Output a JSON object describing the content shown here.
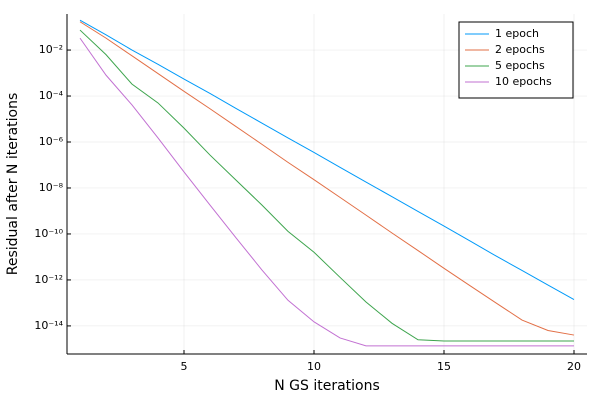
{
  "chart_data": {
    "type": "line",
    "xlabel": "N GS iterations",
    "ylabel": "Residual after N iterations",
    "x": [
      1,
      2,
      3,
      4,
      5,
      6,
      7,
      8,
      9,
      10,
      11,
      12,
      13,
      14,
      15,
      16,
      17,
      18,
      19,
      20
    ],
    "xlim": [
      0.5,
      20.5
    ],
    "xticks": [
      5,
      10,
      15,
      20
    ],
    "ylim": [
      6e-16,
      0.37
    ],
    "ylog": true,
    "grid": true,
    "legend": "top-right",
    "yticks": [
      {
        "value": 1e-14,
        "label": "10⁻¹⁴"
      },
      {
        "value": 1e-12,
        "label": "10⁻¹²"
      },
      {
        "value": 1e-10,
        "label": "10⁻¹⁰"
      },
      {
        "value": 1e-08,
        "label": "10⁻⁸"
      },
      {
        "value": 1e-06,
        "label": "10⁻⁶"
      },
      {
        "value": 0.0001,
        "label": "10⁻⁴"
      },
      {
        "value": 0.01,
        "label": "10⁻²"
      }
    ],
    "series": [
      {
        "name": "1 epoch",
        "color": "#009af9",
        "values": [
          0.2,
          0.046,
          0.01,
          0.0024,
          0.00055,
          0.00013,
          2.9e-05,
          6.6e-06,
          1.5e-06,
          3.5e-07,
          7.9e-08,
          1.8e-08,
          4.2e-09,
          9.5e-10,
          2.2e-10,
          5e-11,
          1.1e-11,
          2.6e-12,
          6e-13,
          1.4e-13
        ]
      },
      {
        "name": "2 epochs",
        "color": "#e26f46",
        "values": [
          0.17,
          0.033,
          0.0056,
          0.00095,
          0.00016,
          2.8e-05,
          4.7e-06,
          7.9e-07,
          1.3e-07,
          2.3e-08,
          3.9e-09,
          6.6e-10,
          1.1e-10,
          1.9e-11,
          3.2e-12,
          5.6e-13,
          1e-13,
          1.8e-14,
          6.3e-15,
          4e-15
        ]
      },
      {
        "name": "5 epochs",
        "color": "#3da44d",
        "values": [
          0.074,
          0.0063,
          0.00033,
          5e-05,
          4e-06,
          2.7e-07,
          2.2e-08,
          1.8e-09,
          1.3e-10,
          1.6e-11,
          1.3e-12,
          1.1e-13,
          1.3e-14,
          2.5e-15,
          2.2e-15,
          2.2e-15,
          2.2e-15,
          2.2e-15,
          2.2e-15,
          2.2e-15
        ]
      },
      {
        "name": "10 epochs",
        "color": "#c271d2",
        "values": [
          0.033,
          0.00081,
          4.1e-05,
          1.5e-06,
          5e-08,
          1.8e-09,
          6.8e-11,
          2.7e-12,
          1.3e-13,
          1.5e-14,
          3e-15,
          1.35e-15,
          1.35e-15,
          1.35e-15,
          1.35e-15,
          1.35e-15,
          1.35e-15,
          1.35e-15,
          1.35e-15,
          1.35e-15
        ]
      }
    ]
  }
}
